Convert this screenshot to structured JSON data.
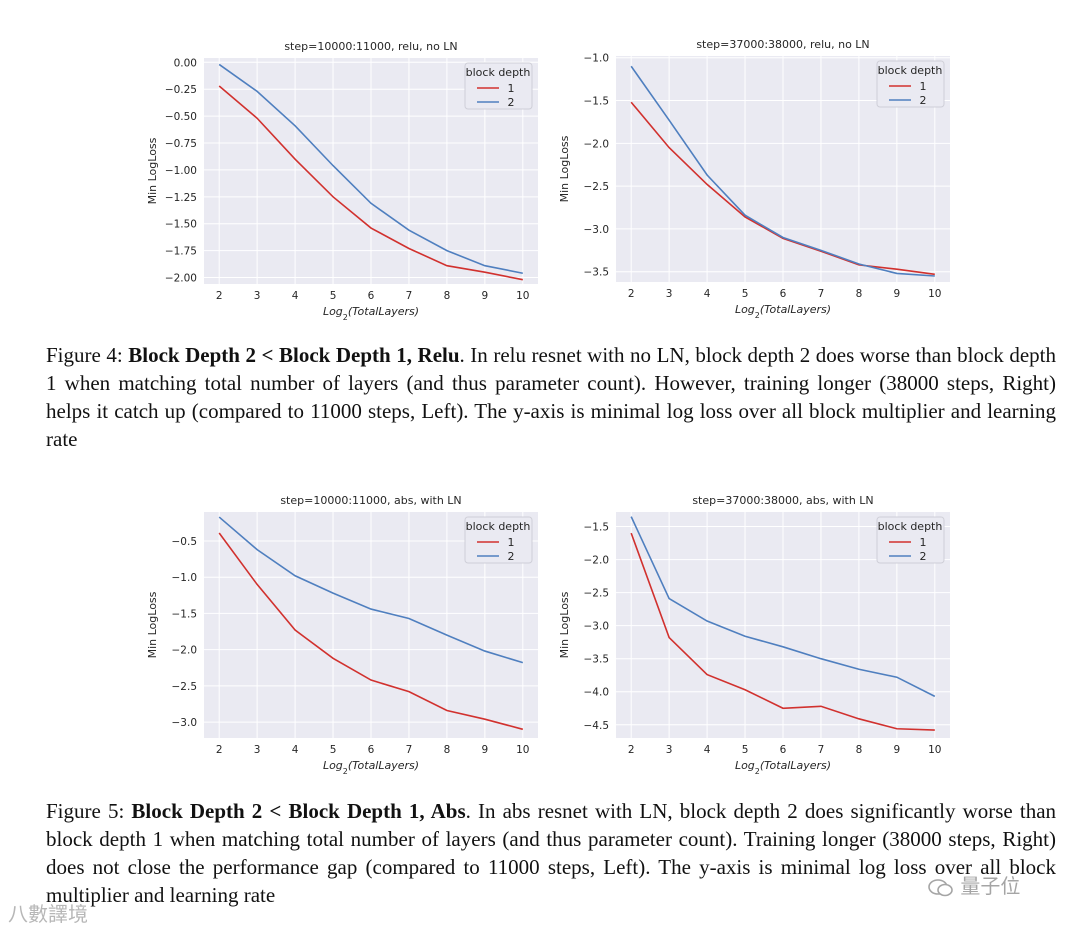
{
  "charts": [
    {
      "title": "step=10000:11000, relu, no LN",
      "xlabel": "Log2(TotalLayers)",
      "ylabel": "Min LogLoss",
      "legend_title": "block depth",
      "series_names": [
        "1",
        "2"
      ],
      "colors": [
        "#d1312e",
        "#4f7fbf"
      ],
      "x": [
        2,
        3,
        4,
        5,
        6,
        7,
        8,
        9,
        10
      ],
      "ylim": [
        -2.06,
        0.04
      ],
      "yticks": [
        0.0,
        -0.25,
        -0.5,
        -0.75,
        -1.0,
        -1.25,
        -1.5,
        -1.75,
        -2.0
      ],
      "ytick_labels": [
        "0.00",
        "−0.25",
        "−0.50",
        "−0.75",
        "−1.00",
        "−1.25",
        "−1.50",
        "−1.75",
        "−2.00"
      ],
      "series": [
        {
          "name": "1",
          "values": [
            -0.22,
            -0.52,
            -0.9,
            -1.25,
            -1.54,
            -1.73,
            -1.89,
            -1.95,
            -2.02
          ]
        },
        {
          "name": "2",
          "values": [
            -0.02,
            -0.27,
            -0.59,
            -0.96,
            -1.31,
            -1.56,
            -1.75,
            -1.89,
            -1.96
          ]
        }
      ]
    },
    {
      "title": "step=37000:38000, relu, no LN",
      "xlabel": "Log2(TotalLayers)",
      "ylabel": "Min LogLoss",
      "legend_title": "block depth",
      "series_names": [
        "1",
        "2"
      ],
      "colors": [
        "#d1312e",
        "#4f7fbf"
      ],
      "x": [
        2,
        3,
        4,
        5,
        6,
        7,
        8,
        9,
        10
      ],
      "ylim": [
        -3.62,
        -0.98
      ],
      "yticks": [
        -1.0,
        -1.5,
        -2.0,
        -2.5,
        -3.0,
        -3.5
      ],
      "ytick_labels": [
        "−1.0",
        "−1.5",
        "−2.0",
        "−2.5",
        "−3.0",
        "−3.5"
      ],
      "series": [
        {
          "name": "1",
          "values": [
            -1.52,
            -2.05,
            -2.48,
            -2.86,
            -3.11,
            -3.26,
            -3.42,
            -3.47,
            -3.53
          ]
        },
        {
          "name": "2",
          "values": [
            -1.1,
            -1.73,
            -2.37,
            -2.84,
            -3.1,
            -3.25,
            -3.41,
            -3.52,
            -3.55
          ]
        }
      ]
    },
    {
      "title": "step=10000:11000, abs, with LN",
      "xlabel": "Log2(TotalLayers)",
      "ylabel": "Min LogLoss",
      "legend_title": "block depth",
      "series_names": [
        "1",
        "2"
      ],
      "colors": [
        "#d1312e",
        "#4f7fbf"
      ],
      "x": [
        2,
        3,
        4,
        5,
        6,
        7,
        8,
        9,
        10
      ],
      "ylim": [
        -3.22,
        -0.1
      ],
      "yticks": [
        -0.5,
        -1.0,
        -1.5,
        -2.0,
        -2.5,
        -3.0
      ],
      "ytick_labels": [
        "−0.5",
        "−1.0",
        "−1.5",
        "−2.0",
        "−2.5",
        "−3.0"
      ],
      "series": [
        {
          "name": "1",
          "values": [
            -0.39,
            -1.1,
            -1.73,
            -2.12,
            -2.42,
            -2.58,
            -2.84,
            -2.96,
            -3.1
          ]
        },
        {
          "name": "2",
          "values": [
            -0.17,
            -0.62,
            -0.98,
            -1.22,
            -1.44,
            -1.57,
            -1.8,
            -2.02,
            -2.18
          ]
        }
      ]
    },
    {
      "title": "step=37000:38000, abs, with LN",
      "xlabel": "Log2(TotalLayers)",
      "ylabel": "Min LogLoss",
      "legend_title": "block depth",
      "series_names": [
        "1",
        "2"
      ],
      "colors": [
        "#d1312e",
        "#4f7fbf"
      ],
      "x": [
        2,
        3,
        4,
        5,
        6,
        7,
        8,
        9,
        10
      ],
      "ylim": [
        -4.7,
        -1.28
      ],
      "yticks": [
        -1.5,
        -2.0,
        -2.5,
        -3.0,
        -3.5,
        -4.0,
        -4.5
      ],
      "ytick_labels": [
        "−1.5",
        "−2.0",
        "−2.5",
        "−3.0",
        "−3.5",
        "−4.0",
        "−4.5"
      ],
      "series": [
        {
          "name": "1",
          "values": [
            -1.6,
            -3.18,
            -3.74,
            -3.97,
            -4.25,
            -4.22,
            -4.41,
            -4.56,
            -4.58
          ]
        },
        {
          "name": "2",
          "values": [
            -1.35,
            -2.59,
            -2.93,
            -3.16,
            -3.32,
            -3.5,
            -3.66,
            -3.78,
            -4.07
          ]
        }
      ]
    }
  ],
  "chart_data": [
    {
      "type": "line",
      "title": "step=10000:11000, relu, no LN",
      "xlabel": "Log2(TotalLayers)",
      "ylabel": "Min LogLoss",
      "x": [
        2,
        3,
        4,
        5,
        6,
        7,
        8,
        9,
        10
      ],
      "ylim": [
        -2.06,
        0.04
      ],
      "series": [
        {
          "name": "1",
          "values": [
            -0.22,
            -0.52,
            -0.9,
            -1.25,
            -1.54,
            -1.73,
            -1.89,
            -1.95,
            -2.02
          ]
        },
        {
          "name": "2",
          "values": [
            -0.02,
            -0.27,
            -0.59,
            -0.96,
            -1.31,
            -1.56,
            -1.75,
            -1.89,
            -1.96
          ]
        }
      ]
    },
    {
      "type": "line",
      "title": "step=37000:38000, relu, no LN",
      "xlabel": "Log2(TotalLayers)",
      "ylabel": "Min LogLoss",
      "x": [
        2,
        3,
        4,
        5,
        6,
        7,
        8,
        9,
        10
      ],
      "ylim": [
        -3.62,
        -0.98
      ],
      "series": [
        {
          "name": "1",
          "values": [
            -1.52,
            -2.05,
            -2.48,
            -2.86,
            -3.11,
            -3.26,
            -3.42,
            -3.47,
            -3.53
          ]
        },
        {
          "name": "2",
          "values": [
            -1.1,
            -1.73,
            -2.37,
            -2.84,
            -3.1,
            -3.25,
            -3.41,
            -3.52,
            -3.55
          ]
        }
      ]
    },
    {
      "type": "line",
      "title": "step=10000:11000, abs, with LN",
      "xlabel": "Log2(TotalLayers)",
      "ylabel": "Min LogLoss",
      "x": [
        2,
        3,
        4,
        5,
        6,
        7,
        8,
        9,
        10
      ],
      "ylim": [
        -3.22,
        -0.1
      ],
      "series": [
        {
          "name": "1",
          "values": [
            -0.39,
            -1.1,
            -1.73,
            -2.12,
            -2.42,
            -2.58,
            -2.84,
            -2.96,
            -3.1
          ]
        },
        {
          "name": "2",
          "values": [
            -0.17,
            -0.62,
            -0.98,
            -1.22,
            -1.44,
            -1.57,
            -1.8,
            -2.02,
            -2.18
          ]
        }
      ]
    },
    {
      "type": "line",
      "title": "step=37000:38000, abs, with LN",
      "xlabel": "Log2(TotalLayers)",
      "ylabel": "Min LogLoss",
      "x": [
        2,
        3,
        4,
        5,
        6,
        7,
        8,
        9,
        10
      ],
      "ylim": [
        -4.7,
        -1.28
      ],
      "series": [
        {
          "name": "1",
          "values": [
            -1.6,
            -3.18,
            -3.74,
            -3.97,
            -4.25,
            -4.22,
            -4.41,
            -4.56,
            -4.58
          ]
        },
        {
          "name": "2",
          "values": [
            -1.35,
            -2.59,
            -2.93,
            -3.16,
            -3.32,
            -3.5,
            -3.66,
            -3.78,
            -4.07
          ]
        }
      ]
    }
  ],
  "fig4": {
    "prefix": "Figure 4:",
    "bold": "Block Depth 2 < Block Depth 1, Relu",
    "body": ". In relu resnet with no LN, block depth 2 does worse than block depth 1 when matching total number of layers (and thus parameter count). However, training longer (38000 steps, Right) helps it catch up (compared to 11000 steps, Left). The y-axis is minimal log loss over all block multiplier and learning rate"
  },
  "fig5": {
    "prefix": "Figure 5:",
    "bold": "Block Depth 2 < Block Depth 1, Abs",
    "body": ". In abs resnet with LN, block depth 2 does significantly worse than block depth 1 when matching total number of layers (and thus parameter count). Training longer (38000 steps, Right) does not close the performance gap (compared to 11000 steps, Left). The y-axis is minimal log loss over all block multiplier and learning rate"
  },
  "watermark_left": "八數譯境",
  "watermark_right": "量子位"
}
